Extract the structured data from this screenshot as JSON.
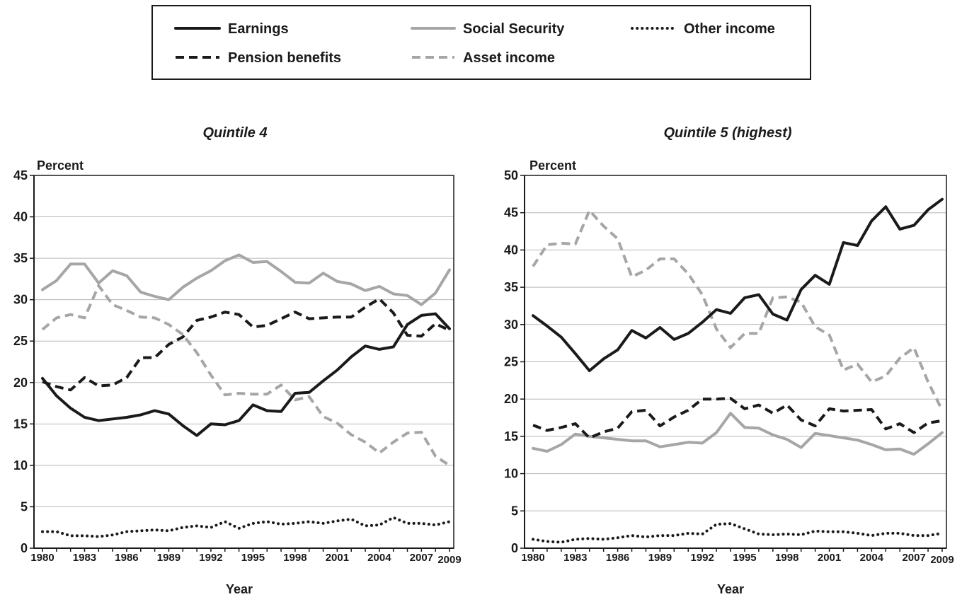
{
  "legend": {
    "items": [
      {
        "name": "Earnings",
        "color": "#1a1a1a",
        "dash": "solid"
      },
      {
        "name": "Social Security",
        "color": "#a6a6a6",
        "dash": "solid"
      },
      {
        "name": "Other income",
        "color": "#1a1a1a",
        "dash": "dotted"
      },
      {
        "name": "Pension benefits",
        "color": "#1a1a1a",
        "dash": "dashed"
      },
      {
        "name": "Asset income",
        "color": "#a6a6a6",
        "dash": "dashed"
      }
    ]
  },
  "chart_data": [
    {
      "type": "line",
      "title": "Quintile 4",
      "ylabel": "Percent",
      "xlabel": "Year",
      "ylim": [
        0,
        45
      ],
      "yticks": [
        0,
        5,
        10,
        15,
        20,
        25,
        30,
        35,
        40,
        45
      ],
      "xlim": [
        1980,
        2009
      ],
      "xticks": [
        1980,
        1983,
        1986,
        1989,
        1992,
        1995,
        1998,
        2001,
        2004,
        2007,
        2009
      ],
      "grid": true,
      "x": [
        1980,
        1981,
        1982,
        1983,
        1984,
        1985,
        1986,
        1987,
        1988,
        1989,
        1990,
        1991,
        1992,
        1993,
        1994,
        1995,
        1996,
        1997,
        1998,
        1999,
        2000,
        2001,
        2002,
        2003,
        2004,
        2005,
        2006,
        2007,
        2008,
        2009
      ],
      "series": [
        {
          "name": "Earnings",
          "values": [
            20.5,
            18.4,
            16.9,
            15.8,
            15.4,
            15.6,
            15.8,
            16.1,
            16.6,
            16.2,
            14.8,
            13.6,
            15.0,
            14.9,
            15.4,
            17.3,
            16.6,
            16.5,
            18.7,
            18.8,
            20.2,
            21.5,
            23.1,
            24.4,
            24.0,
            24.3,
            27.0,
            28.1,
            28.3,
            26.5
          ]
        },
        {
          "name": "Social Security",
          "values": [
            31.2,
            32.3,
            34.3,
            34.3,
            32.0,
            33.5,
            32.9,
            30.9,
            30.4,
            30.0,
            31.5,
            32.6,
            33.5,
            34.7,
            35.4,
            34.5,
            34.6,
            33.4,
            32.1,
            32.0,
            33.2,
            32.2,
            31.9,
            31.1,
            31.6,
            30.7,
            30.5,
            29.4,
            30.8,
            33.6
          ]
        },
        {
          "name": "Other income",
          "values": [
            2.0,
            2.0,
            1.5,
            1.5,
            1.4,
            1.6,
            2.0,
            2.1,
            2.2,
            2.1,
            2.5,
            2.7,
            2.5,
            3.2,
            2.4,
            3.0,
            3.2,
            2.9,
            3.0,
            3.2,
            3.0,
            3.3,
            3.5,
            2.7,
            2.8,
            3.7,
            3.0,
            3.0,
            2.8,
            3.2
          ]
        },
        {
          "name": "Pension benefits",
          "values": [
            20.1,
            19.5,
            19.1,
            20.6,
            19.6,
            19.7,
            20.6,
            23.0,
            23.0,
            24.6,
            25.5,
            27.5,
            27.9,
            28.5,
            28.2,
            26.7,
            26.9,
            27.7,
            28.5,
            27.7,
            27.8,
            27.9,
            27.9,
            29.1,
            30.1,
            28.4,
            25.7,
            25.6,
            27.1,
            26.3
          ]
        },
        {
          "name": "Asset income",
          "values": [
            26.4,
            27.8,
            28.2,
            27.8,
            31.7,
            29.4,
            28.7,
            27.9,
            27.8,
            27.0,
            25.8,
            23.6,
            20.9,
            18.5,
            18.7,
            18.6,
            18.6,
            19.7,
            17.9,
            18.3,
            15.9,
            15.1,
            13.7,
            12.8,
            11.5,
            12.8,
            13.9,
            14.0,
            11.1,
            10.0
          ]
        }
      ]
    },
    {
      "type": "line",
      "title": "Quintile 5 (highest)",
      "ylabel": "Percent",
      "xlabel": "Year",
      "ylim": [
        0,
        50
      ],
      "yticks": [
        0,
        5,
        10,
        15,
        20,
        25,
        30,
        35,
        40,
        45,
        50
      ],
      "xlim": [
        1980,
        2009
      ],
      "xticks": [
        1980,
        1983,
        1986,
        1989,
        1992,
        1995,
        1998,
        2001,
        2004,
        2007,
        2009
      ],
      "grid": true,
      "x": [
        1980,
        1981,
        1982,
        1983,
        1984,
        1985,
        1986,
        1987,
        1988,
        1989,
        1990,
        1991,
        1992,
        1993,
        1994,
        1995,
        1996,
        1997,
        1998,
        1999,
        2000,
        2001,
        2002,
        2003,
        2004,
        2005,
        2006,
        2007,
        2008,
        2009
      ],
      "series": [
        {
          "name": "Earnings",
          "values": [
            31.2,
            29.8,
            28.3,
            26.1,
            23.8,
            25.4,
            26.6,
            29.2,
            28.2,
            29.6,
            28.0,
            28.8,
            30.3,
            32.0,
            31.5,
            33.6,
            34.0,
            31.4,
            30.6,
            34.7,
            36.6,
            35.4,
            41.0,
            40.6,
            43.9,
            45.8,
            42.8,
            43.3,
            45.4,
            46.8
          ]
        },
        {
          "name": "Social Security",
          "values": [
            13.4,
            13.0,
            13.9,
            15.3,
            15.0,
            14.8,
            14.6,
            14.4,
            14.4,
            13.6,
            13.9,
            14.2,
            14.1,
            15.5,
            18.1,
            16.2,
            16.1,
            15.2,
            14.6,
            13.5,
            15.4,
            15.1,
            14.8,
            14.5,
            13.9,
            13.2,
            13.3,
            12.6,
            14.0,
            15.5
          ]
        },
        {
          "name": "Other income",
          "values": [
            1.2,
            0.9,
            0.8,
            1.2,
            1.3,
            1.2,
            1.4,
            1.7,
            1.5,
            1.7,
            1.7,
            2.0,
            1.9,
            3.2,
            3.3,
            2.6,
            1.9,
            1.8,
            1.9,
            1.8,
            2.3,
            2.2,
            2.2,
            2.0,
            1.7,
            2.0,
            2.0,
            1.7,
            1.7,
            2.0
          ]
        },
        {
          "name": "Pension benefits",
          "values": [
            16.5,
            15.8,
            16.2,
            16.7,
            14.8,
            15.6,
            16.1,
            18.3,
            18.5,
            16.4,
            17.6,
            18.5,
            20.0,
            20.0,
            20.1,
            18.7,
            19.2,
            18.1,
            19.2,
            17.2,
            16.4,
            18.7,
            18.4,
            18.5,
            18.6,
            16.0,
            16.7,
            15.5,
            16.8,
            17.1
          ]
        },
        {
          "name": "Asset income",
          "values": [
            37.8,
            40.7,
            40.9,
            40.8,
            45.3,
            43.2,
            41.5,
            36.4,
            37.3,
            38.8,
            38.8,
            36.8,
            34.0,
            29.4,
            26.9,
            28.8,
            28.8,
            33.6,
            33.7,
            33.0,
            29.7,
            28.6,
            23.9,
            24.7,
            22.3,
            23.1,
            25.5,
            26.9,
            22.3,
            18.5
          ]
        }
      ]
    }
  ]
}
